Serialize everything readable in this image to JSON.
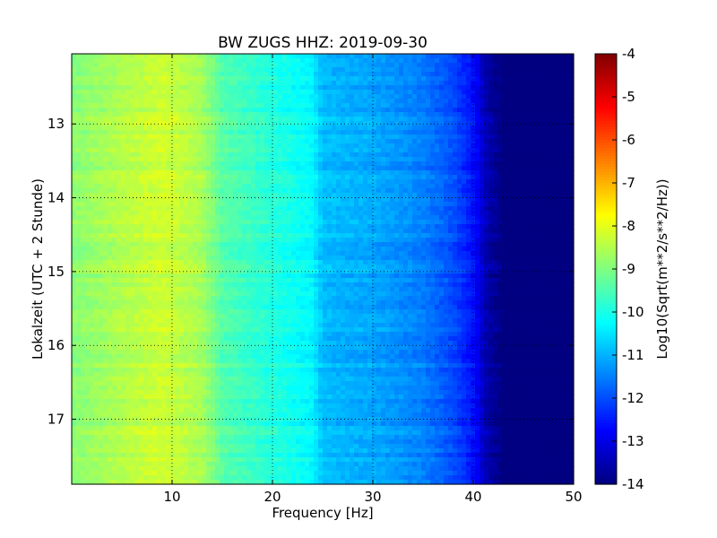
{
  "chart_data": {
    "type": "heatmap",
    "title": "BW ZUGS HHZ: 2019-09-30",
    "xlabel": "Frequency [Hz]",
    "ylabel": "Lokalzeit (UTC + 2 Stunde)",
    "xlim": [
      0,
      50
    ],
    "ylim": [
      12.05,
      17.88
    ],
    "y_inverted": true,
    "x_ticks": [
      "10",
      "20",
      "30",
      "40",
      "50"
    ],
    "x_tick_values": [
      10,
      20,
      30,
      40,
      50
    ],
    "y_ticks": [
      "13",
      "14",
      "15",
      "16",
      "17"
    ],
    "y_tick_values": [
      13,
      14,
      15,
      16,
      17
    ],
    "grid": true,
    "colormap": "jet",
    "colorbar": {
      "label": "Log10(Sqrt(m**2/s**2/Hz))",
      "range": [
        -14,
        -4
      ],
      "ticks": [
        "-4",
        "-5",
        "-6",
        "-7",
        "-8",
        "-9",
        "-10",
        "-11",
        "-12",
        "-13",
        "-14"
      ],
      "tick_values": [
        -4,
        -5,
        -6,
        -7,
        -8,
        -9,
        -10,
        -11,
        -12,
        -13,
        -14
      ]
    },
    "spectrum_profile": {
      "frequency_hz": [
        0,
        5,
        9,
        13,
        15,
        20,
        24,
        25,
        30,
        35,
        38,
        40,
        41.5,
        43,
        50
      ],
      "level": [
        -8.9,
        -8.5,
        -8.2,
        -8.6,
        -9.4,
        -9.9,
        -10.3,
        -10.9,
        -11.1,
        -11.5,
        -12.0,
        -12.6,
        -13.6,
        -14.0,
        -14.0
      ]
    }
  }
}
